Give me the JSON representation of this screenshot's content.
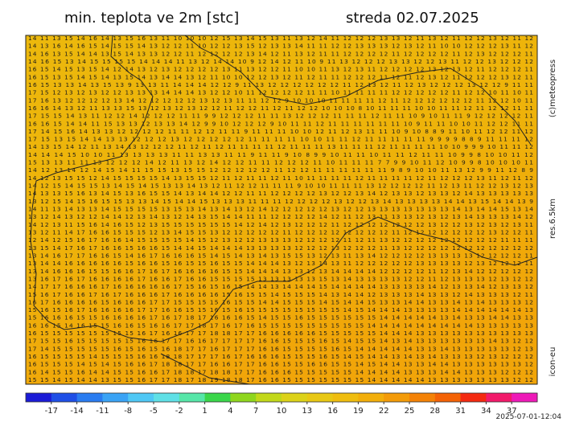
{
  "header": {
    "title": "min. teplota ve 2m [stc]",
    "date": "streda 02.07.2025"
  },
  "side": {
    "copyright": "(c)meteopress",
    "resolution": "res.6.5km",
    "model": "icon-eu"
  },
  "timestamp": "2025-07-01-12:04",
  "map": {
    "rows": [
      "14 11 13 15 14 16 14 13 15 16 13 11 10 10 10 12 15 13 14 15 13 11 13 12 14 11 12 12 12 13 13 12 11 13 12 11 12 12 13 12 11 12",
      "14 13 16 14 16 15 14 15 15 14 13 12 12 11 10 12 12 13 15 12 13 13 14 11 11 12 12 13 13 13 12 13 12 11 10 10 12 12 12 13 11 12",
      "14 16 13 15 14 14 13 15 14 13 13 12 12 11 12 12 12 12 13 14 12 11 13 12 11 11 12 12 12 12 11 12 12 12 12 11 12 13 12 12 12 11",
      "14 16 15 13 14 15 15 15 15 14 14 14 11 13 12 14 14 10 9 12 14 12 11 10 9 11 13 12 12 12 13 13 12 12 13 11 12 12 13 12 12 12",
      "16 15 14 15 13 15 14 12 14 13 12 13 12 12 12 12 13 11 13 12 12 11 10 10 11 13 12 13 11 12 12 12 12 13 12 13 12 11 12 12 12 11",
      "16 15 13 15 14 15 14 13 15 14 13 14 14 13 12 11 10 10 12 12 13 12 11 12 11 11 12 12 12 11 12 11 12 13 12 11 12 12 12 13 12 11",
      "16 15 13 13 14 13 15 13 9 13 13 11 14 14 14 12 12 9 11 13 12 12 12 12 12 12 11 12 13 12 11 12 13 12 12 12 13 12 12 9 11 11",
      "17 15 12 13 12 13 12 12 13 13 13 14 14 14 13 12 12 10 11 12 12 12 12 11 11 10 11 11 11 11 12 12 12 12 12 11 12 12 10 11 10 11",
      "17 16 13 12 12 12 12 13 14 12 12 12 12 12 13 12 13 11 11 12 12 9 10 10 10 11 11 11 11 12 11 12 12 12 12 12 12 11 12 12 10 11",
      "16 16 14 13 12 11 13 13 15 13 12 13 12 13 12 12 11 12 12 11 12 11 12 12 10 10 10 8 10 11 11 11 10 10 11 11 12 11 12 12 11 11",
      "17 15 15 14 13 11 12 12 14 12 12 12 11 11 9 9 12 12 12 11 11 13 12 12 12 11 11 11 12 11 11 10 9 10 11 11 9 12 12 12 12 11",
      "16 16 15 14 14 11 15 13 13 12 13 13 14 12 9 9 10 12 12 12 9 10 11 11 12 11 11 11 11 11 11 10 9 11 11 10 10 11 12 12 11 11",
      "17 14 15 16 14 13 13 12 12 12 12 11 11 12 12 11 11 9 11 11 11 10 10 12 11 12 13 11 11 10 9 10 8 8 9 11 10 11 12 12 11 12",
      "17 15 13 15 14 14 13 13 12 12 12 13 12 12 12 12 12 11 11 11 11 10 10 11 11 12 11 11 11 11 11 9 9 9 9 8 8 9 11 11 11 12",
      "14 13 15 14 12 11 13 14 13 12 12 12 11 12 11 12 11 11 11 11 12 11 11 11 13 11 11 11 12 11 11 11 11 10 10 9 9 9 10 11 11 12",
      "14 14 14 15 10 10 11 13 13 13 13 11 11 13 13 11 11 9 11 11 9 10 8 9 9 10 11 11 10 11 11 12 11 11 10 9 9 8 10 10 11 12",
      "15 13 13 11 11 13 12 12 12 14 12 11 13 12 14 12 12 11 11 12 12 12 11 10 11 11 11 7 7 9 9 10 11 12 10 9 9 8 10 10 10 11",
      "14 12 13 14 12 14 15 14 11 15 15 13 15 15 12 12 12 12 12 11 12 12 11 11 11 11 11 11 9 8 9 10 10 11 13 12 9 9 11 12 8 9",
      "14 12 13 15 15 12 14 15 15 15 15 14 13 15 15 12 11 12 11 11 12 11 10 11 11 11 11 12 11 11 11 11 12 11 12 12 12 13 11 12 11 12",
      "14 12 15 14 15 15 13 14 15 14 15 13 13 14 13 12 11 12 12 11 11 11 9 10 10 11 11 11 13 12 12 12 12 11 12 13 11 12 12 13 12 13",
      "14 13 13 15 16 13 14 15 13 16 15 15 14 13 14 14 12 12 11 11 12 12 12 12 13 12 12 13 14 12 13 13 12 13 13 12 14 13 13 13 13 13",
      "13 12 15 14 15 16 15 15 13 13 14 15 14 14 15 13 13 13 11 11 11 12 12 12 12 13 12 12 13 14 13 13 13 13 14 14 13 15 14 14 13 9",
      "14 11 13 14 13 13 14 15 15 15 15 13 15 13 14 13 14 13 12 14 12 12 12 12 12 13 12 12 13 13 13 13 13 13 13 14 13 14 14 15 13 14",
      "13 12 14 13 12 12 14 14 12 13 14 13 12 14 13 15 14 14 11 11 12 12 12 12 14 12 11 12 13 11 13 13 12 13 12 13 14 13 13 13 14 12",
      "14 12 13 11 15 16 14 16 15 12 13 15 15 15 15 15 15 14 12 14 12 13 12 12 12 11 12 12 12 12 12 12 12 13 12 12 13 12 13 12 13 11",
      "13 12 11 14 17 16 16 15 15 15 12 13 14 15 15 13 12 12 12 12 12 11 12 12 12 12 12 12 12 12 11 12 12 12 12 12 12 12 13 12 12 11",
      "12 14 12 15 16 17 16 16 14 15 15 15 15 14 15 12 13 12 12 13 13 13 12 12 12 12 11 12 11 13 12 12 12 12 12 12 12 12 12 11 11 11",
      "13 15 14 17 16 17 16 16 15 16 16 15 14 14 15 14 14 14 13 13 13 13 12 12 12 13 12 12 12 11 13 12 12 12 12 12 12 12 12 12 12 12",
      "13 14 16 17 17 16 16 15 14 16 17 16 16 16 15 14 15 14 13 14 13 15 15 13 12 13 11 13 14 12 12 12 12 13 13 13 13 12 12 12 12 11",
      "13 14 14 16 16 16 16 16 15 16 16 15 16 15 15 16 15 15 14 14 14 13 12 13 14 13 11 12 12 12 12 12 13 13 13 13 12 13 12 12 12 11",
      "13 14 16 16 16 15 15 16 16 17 16 17 16 16 16 16 15 15 14 14 14 13 13 12 13 14 14 14 14 12 12 12 12 11 12 13 14 12 12 12 12 12",
      "13 16 17 16 17 16 16 16 16 17 16 16 17 16 16 15 15 15 15 13 13 13 13 13 15 13 14 13 13 13 13 12 12 11 12 13 13 13 12 13 12 12",
      "14 17 17 16 16 16 17 16 16 16 16 16 17 15 16 15 16 15 14 14 13 14 14 14 15 14 14 14 14 13 13 13 13 14 12 13 13 14 12 13 13 12",
      "15 16 17 16 16 17 16 17 16 16 16 17 16 16 16 16 15 16 15 15 14 15 15 15 14 13 14 14 12 13 13 13 14 13 13 12 14 13 13 13 12 11",
      "16 17 16 16 16 16 15 16 16 16 17 17 15 15 15 15 16 15 15 14 14 15 15 15 14 15 14 14 15 13 13 14 14 13 13 14 13 14 13 13 13 12",
      "15 16 15 16 17 16 16 16 16 17 17 16 16 15 15 16 15 16 15 15 15 15 15 15 15 15 14 15 14 14 14 13 13 13 13 14 14 14 14 14 14 13",
      "15 16 16 16 15 15 16 16 16 16 17 16 17 18 17 16 16 16 15 14 15 15 16 15 15 15 15 15 15 14 14 14 14 14 13 14 13 13 14 14 13 13",
      "16 16 15 14 16 15 15 16 16 15 16 16 17 17 18 17 16 17 16 15 15 15 15 15 15 15 15 15 14 14 14 14 14 14 14 14 14 13 13 13 13 13",
      "16 15 15 15 15 15 15 15 15 16 17 16 16 17 17 18 18 17 17 16 16 16 16 16 15 15 15 15 15 14 14 14 13 13 13 13 13 13 13 13 13 13",
      "17 15 15 16 15 15 15 15 15 16 16 17 17 16 16 17 17 17 17 16 16 15 15 15 16 15 14 15 15 14 13 14 13 13 13 13 13 13 14 13 12 12",
      "17 14 15 15 15 15 15 16 15 16 15 16 18 17 17 16 17 17 17 16 16 15 15 15 15 16 15 14 14 14 14 14 13 13 14 13 13 13 13 13 12 13",
      "16 15 15 15 15 14 15 15 15 16 16 18 18 17 17 17 16 17 16 16 16 15 15 15 16 15 14 15 14 14 13 14 13 14 13 13 13 12 13 12 12 12",
      "16 15 15 15 14 15 14 15 16 16 17 18 18 17 17 16 16 17 17 16 16 15 15 16 16 15 15 14 15 14 14 13 13 14 14 13 13 13 13 13 13 12",
      "16 14 15 15 16 14 14 15 15 16 16 17 18 18 17 18 18 17 17 16 16 16 15 15 15 15 15 14 14 14 14 13 13 13 14 14 13 13 13 12 12 12",
      "15 15 14 15 14 14 13 15 15 16 17 17 18 17 18 19 18 18 17 16 16 15 15 15 15 15 15 15 14 14 14 14 14 13 13 13 13 13 13 13 12 12"
    ]
  },
  "colorbar": {
    "range": [
      -20,
      40
    ],
    "ticks": [
      -17,
      -14,
      -11,
      -8,
      -5,
      -2,
      1,
      4,
      7,
      10,
      13,
      16,
      19,
      22,
      25,
      28,
      31,
      34,
      37
    ],
    "colors": [
      "#1b1bd6",
      "#1f4fe6",
      "#2a7cf0",
      "#3aa3f5",
      "#4fc8f5",
      "#5fe0e6",
      "#56e6a8",
      "#3ad64a",
      "#8fd61e",
      "#c2d81a",
      "#dcd219",
      "#e8c814",
      "#efbd0f",
      "#f2ae0a",
      "#f39b08",
      "#f48206",
      "#f46205",
      "#f42a10",
      "#f21a6a",
      "#ee1ab8"
    ]
  }
}
